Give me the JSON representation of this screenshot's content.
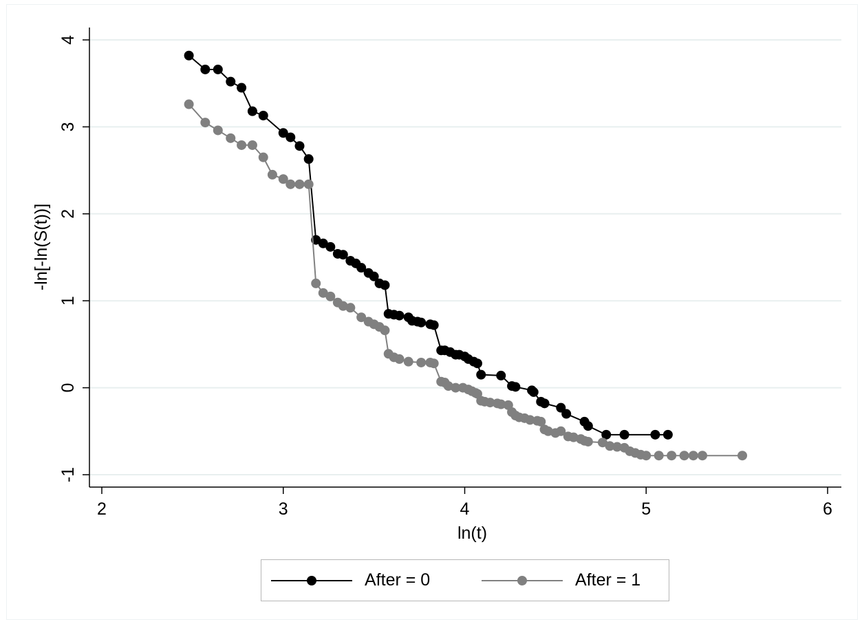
{
  "chart_data": {
    "type": "line",
    "xlabel": "ln(t)",
    "ylabel": "-ln[-ln(S(t))]",
    "xlim": [
      2,
      6
    ],
    "ylim": [
      -1,
      4
    ],
    "xticks": [
      "2",
      "3",
      "4",
      "5",
      "6"
    ],
    "yticks": [
      "-1",
      "0",
      "1",
      "2",
      "3",
      "4"
    ],
    "grid": "horizontal",
    "legend_position": "bottom",
    "series": [
      {
        "name": "After = 0",
        "color": "#000000",
        "points": [
          [
            2.48,
            3.82
          ],
          [
            2.57,
            3.66
          ],
          [
            2.64,
            3.66
          ],
          [
            2.71,
            3.52
          ],
          [
            2.77,
            3.45
          ],
          [
            2.83,
            3.18
          ],
          [
            2.89,
            3.13
          ],
          [
            3.0,
            2.93
          ],
          [
            3.04,
            2.88
          ],
          [
            3.09,
            2.78
          ],
          [
            3.14,
            2.63
          ],
          [
            3.18,
            1.7
          ],
          [
            3.22,
            1.66
          ],
          [
            3.26,
            1.62
          ],
          [
            3.3,
            1.54
          ],
          [
            3.33,
            1.53
          ],
          [
            3.37,
            1.46
          ],
          [
            3.4,
            1.43
          ],
          [
            3.43,
            1.38
          ],
          [
            3.47,
            1.32
          ],
          [
            3.5,
            1.28
          ],
          [
            3.53,
            1.2
          ],
          [
            3.56,
            1.18
          ],
          [
            3.58,
            0.85
          ],
          [
            3.61,
            0.84
          ],
          [
            3.64,
            0.83
          ],
          [
            3.69,
            0.81
          ],
          [
            3.71,
            0.77
          ],
          [
            3.74,
            0.76
          ],
          [
            3.76,
            0.75
          ],
          [
            3.81,
            0.73
          ],
          [
            3.83,
            0.72
          ],
          [
            3.87,
            0.43
          ],
          [
            3.89,
            0.43
          ],
          [
            3.92,
            0.41
          ],
          [
            3.95,
            0.38
          ],
          [
            3.97,
            0.38
          ],
          [
            4.0,
            0.36
          ],
          [
            4.02,
            0.33
          ],
          [
            4.05,
            0.3
          ],
          [
            4.07,
            0.28
          ],
          [
            4.09,
            0.15
          ],
          [
            4.2,
            0.14
          ],
          [
            4.26,
            0.02
          ],
          [
            4.28,
            0.01
          ],
          [
            4.37,
            -0.03
          ],
          [
            4.38,
            -0.05
          ],
          [
            4.42,
            -0.16
          ],
          [
            4.44,
            -0.18
          ],
          [
            4.53,
            -0.23
          ],
          [
            4.56,
            -0.3
          ],
          [
            4.66,
            -0.39
          ],
          [
            4.68,
            -0.44
          ],
          [
            4.78,
            -0.54
          ],
          [
            4.88,
            -0.54
          ],
          [
            5.05,
            -0.54
          ],
          [
            5.12,
            -0.54
          ]
        ]
      },
      {
        "name": "After = 1",
        "color": "#808080",
        "points": [
          [
            2.48,
            3.26
          ],
          [
            2.57,
            3.05
          ],
          [
            2.64,
            2.96
          ],
          [
            2.71,
            2.87
          ],
          [
            2.77,
            2.79
          ],
          [
            2.83,
            2.79
          ],
          [
            2.89,
            2.65
          ],
          [
            2.94,
            2.45
          ],
          [
            3.0,
            2.4
          ],
          [
            3.04,
            2.34
          ],
          [
            3.09,
            2.34
          ],
          [
            3.14,
            2.34
          ],
          [
            3.18,
            1.2
          ],
          [
            3.22,
            1.09
          ],
          [
            3.26,
            1.05
          ],
          [
            3.3,
            0.98
          ],
          [
            3.33,
            0.94
          ],
          [
            3.37,
            0.92
          ],
          [
            3.43,
            0.81
          ],
          [
            3.47,
            0.76
          ],
          [
            3.5,
            0.73
          ],
          [
            3.53,
            0.7
          ],
          [
            3.56,
            0.66
          ],
          [
            3.58,
            0.39
          ],
          [
            3.61,
            0.35
          ],
          [
            3.64,
            0.33
          ],
          [
            3.69,
            0.3
          ],
          [
            3.76,
            0.29
          ],
          [
            3.81,
            0.29
          ],
          [
            3.83,
            0.28
          ],
          [
            3.87,
            0.07
          ],
          [
            3.89,
            0.06
          ],
          [
            3.91,
            0.02
          ],
          [
            3.95,
            0.0
          ],
          [
            3.99,
            0.0
          ],
          [
            4.02,
            -0.02
          ],
          [
            4.04,
            -0.04
          ],
          [
            4.06,
            -0.06
          ],
          [
            4.07,
            -0.07
          ],
          [
            4.09,
            -0.15
          ],
          [
            4.11,
            -0.16
          ],
          [
            4.14,
            -0.17
          ],
          [
            4.18,
            -0.18
          ],
          [
            4.2,
            -0.19
          ],
          [
            4.24,
            -0.2
          ],
          [
            4.26,
            -0.28
          ],
          [
            4.28,
            -0.32
          ],
          [
            4.3,
            -0.34
          ],
          [
            4.33,
            -0.35
          ],
          [
            4.36,
            -0.37
          ],
          [
            4.4,
            -0.38
          ],
          [
            4.42,
            -0.39
          ],
          [
            4.44,
            -0.48
          ],
          [
            4.46,
            -0.5
          ],
          [
            4.5,
            -0.52
          ],
          [
            4.53,
            -0.5
          ],
          [
            4.57,
            -0.56
          ],
          [
            4.6,
            -0.57
          ],
          [
            4.64,
            -0.59
          ],
          [
            4.66,
            -0.61
          ],
          [
            4.68,
            -0.62
          ],
          [
            4.76,
            -0.63
          ],
          [
            4.8,
            -0.67
          ],
          [
            4.84,
            -0.68
          ],
          [
            4.88,
            -0.69
          ],
          [
            4.91,
            -0.73
          ],
          [
            4.94,
            -0.75
          ],
          [
            4.97,
            -0.77
          ],
          [
            5.0,
            -0.78
          ],
          [
            5.07,
            -0.78
          ],
          [
            5.14,
            -0.78
          ],
          [
            5.21,
            -0.78
          ],
          [
            5.26,
            -0.78
          ],
          [
            5.31,
            -0.78
          ],
          [
            5.53,
            -0.78
          ]
        ]
      }
    ]
  }
}
